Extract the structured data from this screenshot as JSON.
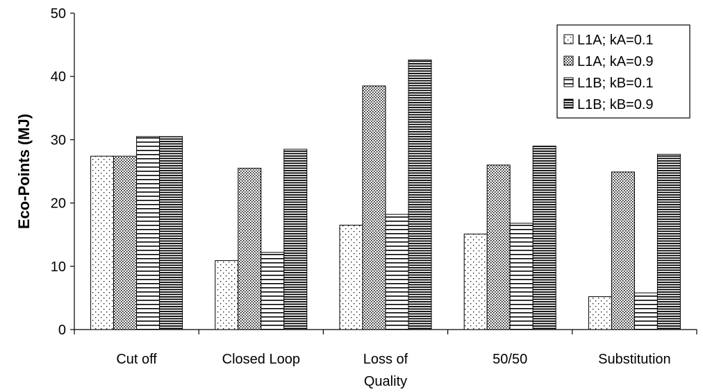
{
  "chart_data": {
    "type": "bar",
    "title": "",
    "xlabel": "",
    "ylabel": "Eco-Points (MJ)",
    "ylim": [
      0,
      50
    ],
    "yticks": [
      0,
      10,
      20,
      30,
      40,
      50
    ],
    "grid": false,
    "legend_position": "top-right",
    "categories": [
      [
        "Cut off"
      ],
      [
        "Closed Loop"
      ],
      [
        "Loss of",
        "Quality"
      ],
      [
        "50/50"
      ],
      [
        "Substitution"
      ]
    ],
    "series": [
      {
        "name": "L1A; kA=0.1",
        "pattern": "sparse-dots",
        "values": [
          27.4,
          10.9,
          16.5,
          15.1,
          5.2
        ]
      },
      {
        "name": "L1A; kA=0.9",
        "pattern": "dense-dots",
        "values": [
          27.4,
          25.5,
          38.5,
          26.0,
          24.9
        ]
      },
      {
        "name": "L1B; kB=0.1",
        "pattern": "horizontal-lines",
        "values": [
          30.5,
          12.2,
          18.2,
          16.8,
          5.8
        ]
      },
      {
        "name": "L1B; kB=0.9",
        "pattern": "dense-horizontal-lines",
        "values": [
          30.5,
          28.5,
          42.6,
          29.0,
          27.7
        ]
      }
    ]
  }
}
